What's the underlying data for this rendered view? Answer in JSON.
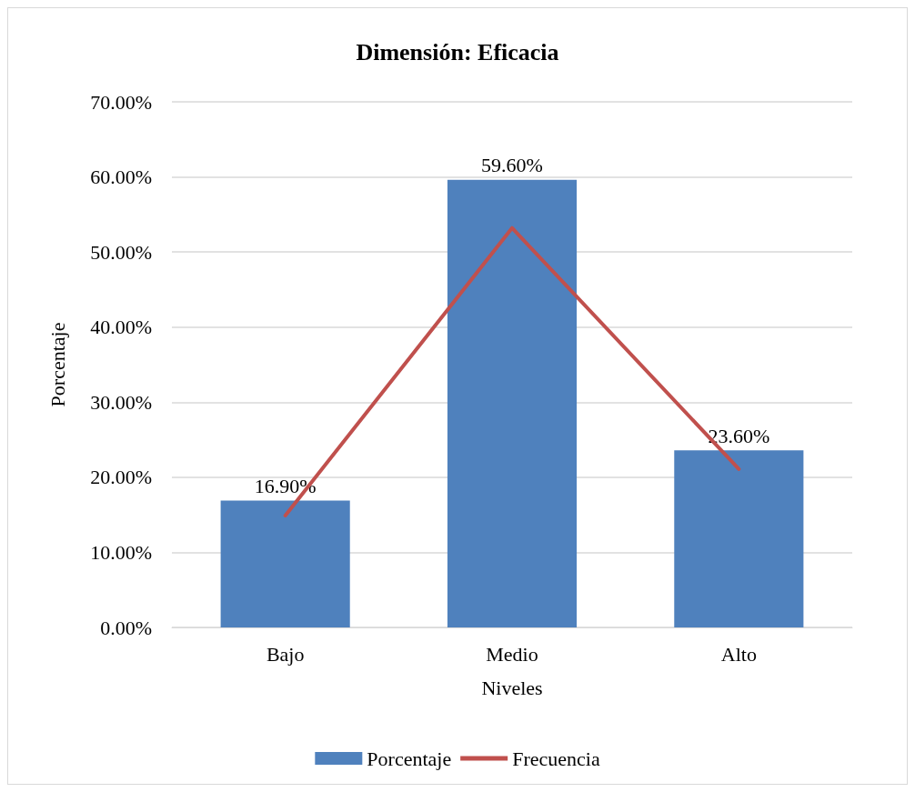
{
  "chart_data": {
    "type": "bar",
    "title": "Dimensión: Eficacia",
    "xlabel": "Niveles",
    "ylabel": "Porcentaje",
    "categories": [
      "Bajo",
      "Medio",
      "Alto"
    ],
    "series": [
      {
        "name": "Porcentaje",
        "color": "#4f81bd",
        "values": [
          16.9,
          59.6,
          23.6
        ],
        "value_labels": [
          "16.90%",
          "59.60%",
          "23.60%"
        ]
      },
      {
        "name": "Frecuencia",
        "type": "line",
        "color": "#c0504d",
        "values": [
          14.9,
          53.2,
          21.1
        ],
        "marker": "none"
      }
    ],
    "ylim": [
      0,
      70
    ],
    "yticks": [
      {
        "value": 0,
        "label": "0.00%"
      },
      {
        "value": 10,
        "label": "10.00%"
      },
      {
        "value": 20,
        "label": "20.00%"
      },
      {
        "value": 30,
        "label": "30.00%"
      },
      {
        "value": 40,
        "label": "40.00%"
      },
      {
        "value": 50,
        "label": "50.00%"
      },
      {
        "value": 60,
        "label": "60.00%"
      },
      {
        "value": 70,
        "label": "70.00%"
      }
    ],
    "grid": "y",
    "legend": "bottom"
  }
}
